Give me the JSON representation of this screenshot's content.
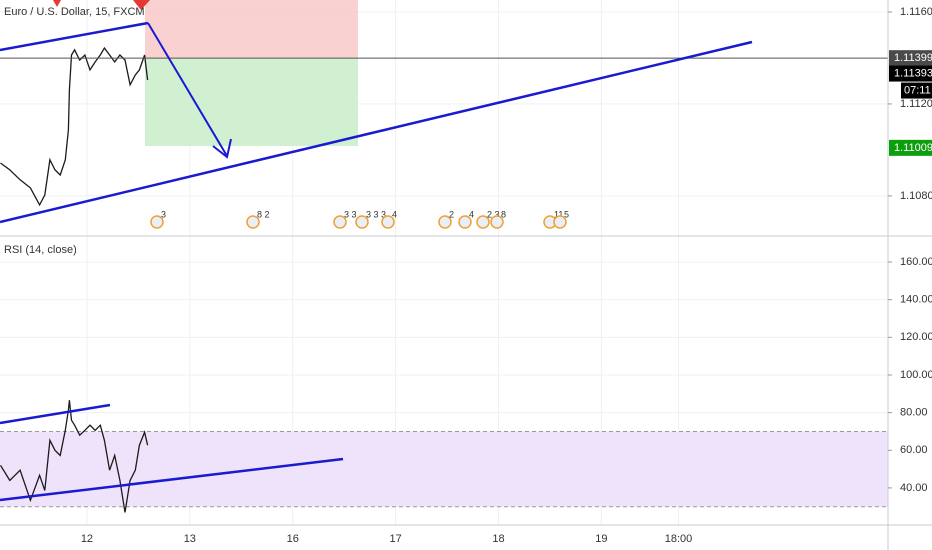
{
  "chart_data": [
    {
      "type": "line",
      "title": "Euro / U.S. Dollar, 15, FXCM",
      "color": "#1b1b1b",
      "grid": true,
      "x": [
        -0.84,
        -0.75,
        -0.65,
        -0.55,
        -0.46,
        -0.41,
        -0.36,
        -0.31,
        -0.26,
        -0.21,
        -0.18,
        -0.17,
        -0.15,
        -0.12,
        -0.07,
        -0.02,
        0.03,
        0.08,
        0.13,
        0.17,
        0.22,
        0.27,
        0.32,
        0.37,
        0.42,
        0.47,
        0.51,
        0.56,
        0.59
      ],
      "values": [
        1.10943,
        1.10913,
        1.1087,
        1.10835,
        1.10761,
        1.10804,
        1.10957,
        1.10913,
        1.10891,
        1.10957,
        1.11087,
        1.11261,
        1.11413,
        1.11435,
        1.11391,
        1.11413,
        1.11348,
        1.11383,
        1.11413,
        1.11443,
        1.11413,
        1.11383,
        1.11413,
        1.11391,
        1.11283,
        1.11326,
        1.11348,
        1.11413,
        1.11304
      ],
      "xlim": [
        -0.845,
        7.786
      ],
      "ylim": [
        1.1063,
        1.11652
      ],
      "xticks": [
        {
          "value": 0,
          "label": "12"
        },
        {
          "value": 1,
          "label": "13"
        },
        {
          "value": 2,
          "label": "16"
        },
        {
          "value": 3,
          "label": "17"
        },
        {
          "value": 4,
          "label": "18"
        },
        {
          "value": 5,
          "label": "19"
        },
        {
          "value": 5.75,
          "label": "18:00"
        }
      ],
      "yticks": [
        {
          "value": 1.116,
          "label": "1.11600"
        },
        {
          "value": 1.112,
          "label": "1.11200"
        },
        {
          "value": 1.108,
          "label": "1.10800"
        }
      ],
      "price_tags": [
        {
          "value": 1.11399,
          "label": "1.11399",
          "color": "#4a4a4a"
        },
        {
          "value": 1.11393,
          "label": "1.11393",
          "color": "#000000"
        },
        {
          "value": 1.11009,
          "label": "1.11009",
          "color": "#0d9e0d"
        }
      ],
      "countdown": "07:11",
      "event_labels": [
        "3",
        "8 2",
        "3 3",
        "3 3 3",
        "4",
        "2",
        "4",
        "2 3",
        "8",
        "11",
        "5"
      ]
    },
    {
      "type": "line",
      "title": "RSI (14, close)",
      "color": "#1b1b1b",
      "grid": true,
      "x": [
        -0.84,
        -0.75,
        -0.65,
        -0.55,
        -0.46,
        -0.41,
        -0.36,
        -0.31,
        -0.26,
        -0.21,
        -0.18,
        -0.17,
        -0.15,
        -0.12,
        -0.07,
        -0.02,
        0.03,
        0.08,
        0.13,
        0.17,
        0.22,
        0.27,
        0.32,
        0.37,
        0.42,
        0.47,
        0.51,
        0.56,
        0.59
      ],
      "values": [
        52.0,
        44.0,
        49.4,
        33.4,
        46.7,
        38.7,
        65.3,
        60.0,
        57.3,
        70.6,
        81.3,
        86.6,
        76.0,
        73.3,
        68.0,
        70.6,
        73.3,
        70.6,
        73.3,
        65.3,
        49.4,
        57.3,
        44.0,
        27.0,
        44.0,
        49.4,
        62.7,
        69.6,
        62.7
      ],
      "xlim": [
        -0.845,
        7.786
      ],
      "ylim": [
        20.3,
        173.3
      ],
      "band": [
        30,
        70
      ],
      "yticks": [
        {
          "value": 160,
          "label": "160.00"
        },
        {
          "value": 140,
          "label": "140.00"
        },
        {
          "value": 120,
          "label": "120.00"
        },
        {
          "value": 100,
          "label": "100.00"
        },
        {
          "value": 80,
          "label": "80.00"
        },
        {
          "value": 60,
          "label": "60.00"
        },
        {
          "value": 40,
          "label": "40.00"
        }
      ]
    }
  ]
}
